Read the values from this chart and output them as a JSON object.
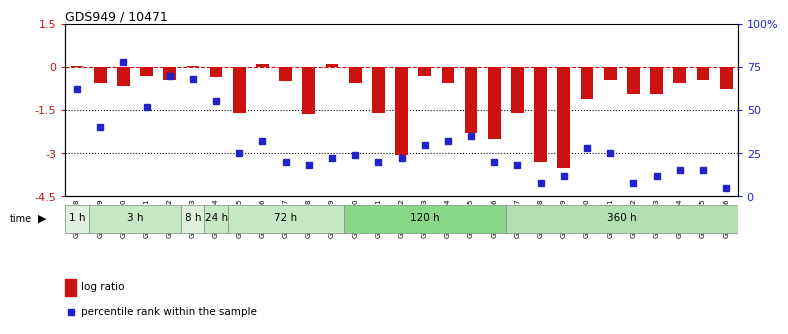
{
  "title": "GDS949 / 10471",
  "samples": [
    "GSM22838",
    "GSM22839",
    "GSM22840",
    "GSM22841",
    "GSM22842",
    "GSM22843",
    "GSM22844",
    "GSM22845",
    "GSM22846",
    "GSM22847",
    "GSM22848",
    "GSM22849",
    "GSM22850",
    "GSM22851",
    "GSM22852",
    "GSM22853",
    "GSM22854",
    "GSM22855",
    "GSM22856",
    "GSM22857",
    "GSM22858",
    "GSM22859",
    "GSM22860",
    "GSM22861",
    "GSM22862",
    "GSM22863",
    "GSM22864",
    "GSM22865",
    "GSM22866"
  ],
  "log_ratio": [
    0.05,
    -0.55,
    -0.65,
    -0.3,
    -0.45,
    0.05,
    -0.35,
    -1.6,
    0.1,
    -0.5,
    -1.65,
    0.1,
    -0.55,
    -1.6,
    -3.05,
    -0.3,
    -0.55,
    -2.3,
    -2.5,
    -1.6,
    -3.3,
    -3.5,
    -1.1,
    -0.45,
    -0.95,
    -0.95,
    -0.55,
    -0.45,
    -0.75
  ],
  "percentile_rank": [
    62,
    40,
    78,
    52,
    70,
    68,
    55,
    25,
    32,
    20,
    18,
    22,
    24,
    20,
    22,
    30,
    32,
    35,
    20,
    18,
    8,
    12,
    28,
    25,
    8,
    12,
    15,
    15,
    5
  ],
  "ylim": [
    -4.5,
    1.5
  ],
  "yticks_left": [
    1.5,
    0,
    -1.5,
    -3,
    -4.5
  ],
  "yticks_right": [
    100,
    75,
    50,
    25,
    0
  ],
  "hlines": [
    -1.5,
    -3.0
  ],
  "dashed_line": 0,
  "time_groups": [
    {
      "label": "1 h",
      "start": 0,
      "end": 1,
      "color": "#dff0df"
    },
    {
      "label": "3 h",
      "start": 1,
      "end": 5,
      "color": "#c5e8c5"
    },
    {
      "label": "8 h",
      "start": 5,
      "end": 6,
      "color": "#dff0df"
    },
    {
      "label": "24 h",
      "start": 6,
      "end": 7,
      "color": "#c5e8c5"
    },
    {
      "label": "72 h",
      "start": 7,
      "end": 12,
      "color": "#c5e8c5"
    },
    {
      "label": "120 h",
      "start": 12,
      "end": 19,
      "color": "#88d888"
    },
    {
      "label": "360 h",
      "start": 19,
      "end": 29,
      "color": "#b0e0b0"
    }
  ],
  "bar_color": "#cc1111",
  "dot_color": "#2222cc",
  "background_color": "#ffffff",
  "legend_log_ratio": "log ratio",
  "legend_percentile": "percentile rank within the sample"
}
